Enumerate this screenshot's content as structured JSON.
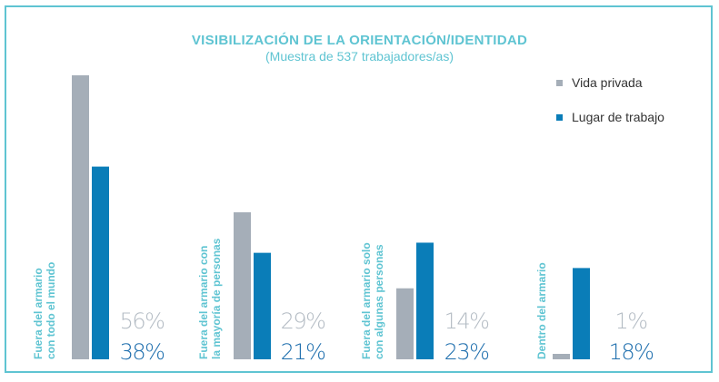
{
  "chart_data": {
    "type": "bar",
    "title": "VISIBILIZACIÓN DE LA ORIENTACIÓN/IDENTIDAD",
    "subtitle": "(Muestra de 537 trabajadores/as)",
    "categories": [
      [
        "Fuera del armario",
        "con todo el mundo"
      ],
      [
        "Fuera del armario con",
        "la mayoría de personas"
      ],
      [
        "Fuera del armario solo",
        "con algunas personas"
      ],
      [
        "Dentro del armario"
      ]
    ],
    "series": [
      {
        "name": "Vida privada",
        "values": [
          56,
          29,
          14,
          1
        ],
        "color": "#a5aeb8",
        "labels": [
          "56%",
          "29%",
          "14%",
          "1%"
        ]
      },
      {
        "name": "Lugar de trabajo",
        "values": [
          38,
          21,
          23,
          18
        ],
        "color": "#0a7db8",
        "labels": [
          "38%",
          "21%",
          "23%",
          "18%"
        ]
      }
    ],
    "label_colors": {
      "Vida privada": "#b4bcc4",
      "Lugar de trabajo": "#1f6fae",
      "category": "#5fc4d2"
    },
    "ylim": [
      0,
      60
    ],
    "legend": "top-right",
    "grid": false
  }
}
